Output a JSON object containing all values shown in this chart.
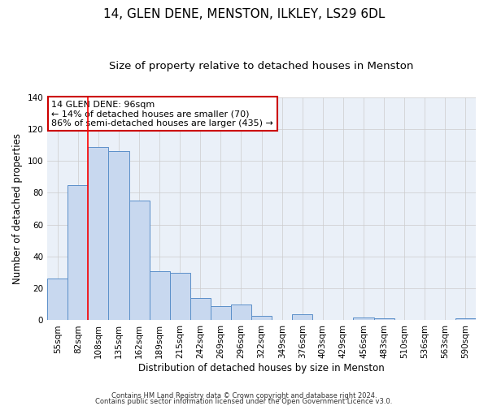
{
  "title": "14, GLEN DENE, MENSTON, ILKLEY, LS29 6DL",
  "subtitle": "Size of property relative to detached houses in Menston",
  "xlabel": "Distribution of detached houses by size in Menston",
  "ylabel": "Number of detached properties",
  "bar_labels": [
    "55sqm",
    "82sqm",
    "108sqm",
    "135sqm",
    "162sqm",
    "189sqm",
    "215sqm",
    "242sqm",
    "269sqm",
    "296sqm",
    "322sqm",
    "349sqm",
    "376sqm",
    "403sqm",
    "429sqm",
    "456sqm",
    "483sqm",
    "510sqm",
    "536sqm",
    "563sqm",
    "590sqm"
  ],
  "bar_values": [
    26,
    85,
    109,
    106,
    75,
    31,
    30,
    14,
    9,
    10,
    3,
    0,
    4,
    0,
    0,
    2,
    1,
    0,
    0,
    0,
    1
  ],
  "bar_color": "#c8d8ef",
  "bar_edge_color": "#5b8fc9",
  "ylim": [
    0,
    140
  ],
  "yticks": [
    0,
    20,
    40,
    60,
    80,
    100,
    120,
    140
  ],
  "red_line_x": 1.5,
  "annotation_title": "14 GLEN DENE: 96sqm",
  "annotation_line1": "← 14% of detached houses are smaller (70)",
  "annotation_line2": "86% of semi-detached houses are larger (435) →",
  "footer_line1": "Contains HM Land Registry data © Crown copyright and database right 2024.",
  "footer_line2": "Contains public sector information licensed under the Open Government Licence v3.0.",
  "background_color": "#ffffff",
  "plot_bg_color": "#eaf0f8",
  "grid_color": "#cccccc",
  "title_fontsize": 11,
  "subtitle_fontsize": 9.5,
  "axis_label_fontsize": 8.5,
  "tick_fontsize": 7.5,
  "annotation_fontsize": 8,
  "footer_fontsize": 6,
  "annotation_box_color": "#ffffff",
  "annotation_box_edge": "#cc0000"
}
